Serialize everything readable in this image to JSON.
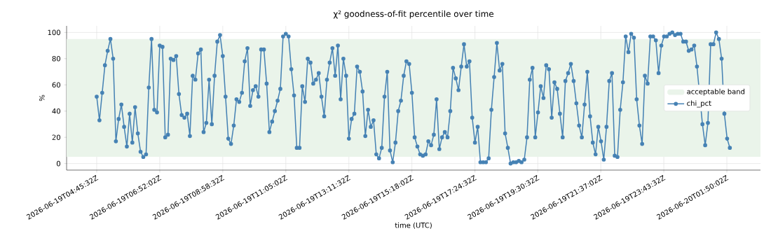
{
  "chart_data": {
    "type": "line",
    "title": "χ² goodness-of-fit percentile over time",
    "xlabel": "time (UTC)",
    "ylabel": "%",
    "x": [
      "2026-06-19T04:45:32Z",
      "2026-06-19T04:51:02Z",
      "2026-06-19T04:56:32Z",
      "2026-06-19T05:02:02Z",
      "2026-06-19T05:07:32Z",
      "2026-06-19T05:13:02Z",
      "2026-06-19T05:18:32Z",
      "2026-06-19T05:24:02Z",
      "2026-06-19T05:29:32Z",
      "2026-06-19T05:35:02Z",
      "2026-06-19T05:40:32Z",
      "2026-06-19T05:46:02Z",
      "2026-06-19T05:51:32Z",
      "2026-06-19T05:57:02Z",
      "2026-06-19T06:02:32Z",
      "2026-06-19T06:08:02Z",
      "2026-06-19T06:13:32Z",
      "2026-06-19T06:19:02Z",
      "2026-06-19T06:24:32Z",
      "2026-06-19T06:30:02Z",
      "2026-06-19T06:35:32Z",
      "2026-06-19T06:41:02Z",
      "2026-06-19T06:46:32Z",
      "2026-06-19T06:52:02Z",
      "2026-06-19T06:57:32Z",
      "2026-06-19T07:03:02Z",
      "2026-06-19T07:08:32Z",
      "2026-06-19T07:14:02Z",
      "2026-06-19T07:19:32Z",
      "2026-06-19T07:25:02Z",
      "2026-06-19T07:30:32Z",
      "2026-06-19T07:36:02Z",
      "2026-06-19T07:41:32Z",
      "2026-06-19T07:47:02Z",
      "2026-06-19T07:52:32Z",
      "2026-06-19T07:58:02Z",
      "2026-06-19T08:03:32Z",
      "2026-06-19T08:09:02Z",
      "2026-06-19T08:14:32Z",
      "2026-06-19T08:20:02Z",
      "2026-06-19T08:25:32Z",
      "2026-06-19T08:31:02Z",
      "2026-06-19T08:36:32Z",
      "2026-06-19T08:42:02Z",
      "2026-06-19T08:47:32Z",
      "2026-06-19T08:53:02Z",
      "2026-06-19T08:58:32Z",
      "2026-06-19T09:04:02Z",
      "2026-06-19T09:09:32Z",
      "2026-06-19T09:15:02Z",
      "2026-06-19T09:20:32Z",
      "2026-06-19T09:26:02Z",
      "2026-06-19T09:31:32Z",
      "2026-06-19T09:37:02Z",
      "2026-06-19T09:42:32Z",
      "2026-06-19T09:48:02Z",
      "2026-06-19T09:53:32Z",
      "2026-06-19T09:59:02Z",
      "2026-06-19T10:04:32Z",
      "2026-06-19T10:10:02Z",
      "2026-06-19T10:15:32Z",
      "2026-06-19T10:21:02Z",
      "2026-06-19T10:26:32Z",
      "2026-06-19T10:32:02Z",
      "2026-06-19T10:37:32Z",
      "2026-06-19T10:43:02Z",
      "2026-06-19T10:48:32Z",
      "2026-06-19T10:54:02Z",
      "2026-06-19T10:59:32Z",
      "2026-06-19T11:05:02Z",
      "2026-06-19T11:10:32Z",
      "2026-06-19T11:16:02Z",
      "2026-06-19T11:21:32Z",
      "2026-06-19T11:27:02Z",
      "2026-06-19T11:32:32Z",
      "2026-06-19T11:38:02Z",
      "2026-06-19T11:43:32Z",
      "2026-06-19T11:49:02Z",
      "2026-06-19T11:54:32Z",
      "2026-06-19T12:00:02Z",
      "2026-06-19T12:05:32Z",
      "2026-06-19T12:11:02Z",
      "2026-06-19T12:16:32Z",
      "2026-06-19T12:22:02Z",
      "2026-06-19T12:27:32Z",
      "2026-06-19T12:33:02Z",
      "2026-06-19T12:38:32Z",
      "2026-06-19T12:44:02Z",
      "2026-06-19T12:49:32Z",
      "2026-06-19T12:55:02Z",
      "2026-06-19T13:00:32Z",
      "2026-06-19T13:06:02Z",
      "2026-06-19T13:11:32Z",
      "2026-06-19T13:17:02Z",
      "2026-06-19T13:22:32Z",
      "2026-06-19T13:28:02Z",
      "2026-06-19T13:33:32Z",
      "2026-06-19T13:39:02Z",
      "2026-06-19T13:44:32Z",
      "2026-06-19T13:50:02Z",
      "2026-06-19T13:55:32Z",
      "2026-06-19T14:01:02Z",
      "2026-06-19T14:06:32Z",
      "2026-06-19T14:12:02Z",
      "2026-06-19T14:17:32Z",
      "2026-06-19T14:23:02Z",
      "2026-06-19T14:28:32Z",
      "2026-06-19T14:34:02Z",
      "2026-06-19T14:39:32Z",
      "2026-06-19T14:45:02Z",
      "2026-06-19T14:50:32Z",
      "2026-06-19T14:56:02Z",
      "2026-06-19T15:01:32Z",
      "2026-06-19T15:07:02Z",
      "2026-06-19T15:12:32Z",
      "2026-06-19T15:18:02Z",
      "2026-06-19T15:23:32Z",
      "2026-06-19T15:29:02Z",
      "2026-06-19T15:34:32Z",
      "2026-06-19T15:40:02Z",
      "2026-06-19T15:45:32Z",
      "2026-06-19T15:51:02Z",
      "2026-06-19T15:56:32Z",
      "2026-06-19T16:02:02Z",
      "2026-06-19T16:07:32Z",
      "2026-06-19T16:13:02Z",
      "2026-06-19T16:18:32Z",
      "2026-06-19T16:24:02Z",
      "2026-06-19T16:29:32Z",
      "2026-06-19T16:35:02Z",
      "2026-06-19T16:40:32Z",
      "2026-06-19T16:46:02Z",
      "2026-06-19T16:51:32Z",
      "2026-06-19T16:57:02Z",
      "2026-06-19T17:02:32Z",
      "2026-06-19T17:08:02Z",
      "2026-06-19T17:13:32Z",
      "2026-06-19T17:19:02Z",
      "2026-06-19T17:24:32Z",
      "2026-06-19T17:30:02Z",
      "2026-06-19T17:35:32Z",
      "2026-06-19T17:41:02Z",
      "2026-06-19T17:46:32Z",
      "2026-06-19T17:52:02Z",
      "2026-06-19T17:57:32Z",
      "2026-06-19T18:03:02Z",
      "2026-06-19T18:08:32Z",
      "2026-06-19T18:14:02Z",
      "2026-06-19T18:19:32Z",
      "2026-06-19T18:25:02Z",
      "2026-06-19T18:30:32Z",
      "2026-06-19T18:36:02Z",
      "2026-06-19T18:41:32Z",
      "2026-06-19T18:47:02Z",
      "2026-06-19T18:52:32Z",
      "2026-06-19T18:58:02Z",
      "2026-06-19T19:03:32Z",
      "2026-06-19T19:09:02Z",
      "2026-06-19T19:14:32Z",
      "2026-06-19T19:20:02Z",
      "2026-06-19T19:25:32Z",
      "2026-06-19T19:31:02Z",
      "2026-06-19T19:36:32Z",
      "2026-06-19T19:42:02Z",
      "2026-06-19T19:47:32Z",
      "2026-06-19T19:53:02Z",
      "2026-06-19T19:58:32Z",
      "2026-06-19T20:04:02Z",
      "2026-06-19T20:09:32Z",
      "2026-06-19T20:15:02Z",
      "2026-06-19T20:20:32Z",
      "2026-06-19T20:26:02Z",
      "2026-06-19T20:31:32Z",
      "2026-06-19T20:37:02Z",
      "2026-06-19T20:42:32Z",
      "2026-06-19T20:48:02Z",
      "2026-06-19T20:53:32Z",
      "2026-06-19T20:59:02Z",
      "2026-06-19T21:04:32Z",
      "2026-06-19T21:10:02Z",
      "2026-06-19T21:15:32Z",
      "2026-06-19T21:21:02Z",
      "2026-06-19T21:26:32Z",
      "2026-06-19T21:32:02Z",
      "2026-06-19T21:37:32Z",
      "2026-06-19T21:43:02Z",
      "2026-06-19T21:48:32Z",
      "2026-06-19T21:54:02Z",
      "2026-06-19T21:59:32Z",
      "2026-06-19T22:05:02Z",
      "2026-06-19T22:10:32Z",
      "2026-06-19T22:16:02Z",
      "2026-06-19T22:21:32Z",
      "2026-06-19T22:27:02Z",
      "2026-06-19T22:32:32Z",
      "2026-06-19T22:38:02Z",
      "2026-06-19T22:43:32Z",
      "2026-06-19T22:49:02Z",
      "2026-06-19T22:54:32Z",
      "2026-06-19T23:00:02Z",
      "2026-06-19T23:05:32Z",
      "2026-06-19T23:11:02Z",
      "2026-06-19T23:16:32Z",
      "2026-06-19T23:22:02Z",
      "2026-06-19T23:27:32Z",
      "2026-06-19T23:33:02Z",
      "2026-06-19T23:38:32Z",
      "2026-06-19T23:44:02Z",
      "2026-06-19T23:49:32Z",
      "2026-06-19T23:55:02Z",
      "2026-06-20T00:00:32Z",
      "2026-06-20T00:06:02Z",
      "2026-06-20T00:11:32Z",
      "2026-06-20T00:17:02Z",
      "2026-06-20T00:22:32Z",
      "2026-06-20T00:28:02Z",
      "2026-06-20T00:33:32Z",
      "2026-06-20T00:39:02Z",
      "2026-06-20T00:44:32Z",
      "2026-06-20T00:50:02Z",
      "2026-06-20T00:55:32Z",
      "2026-06-20T01:01:02Z",
      "2026-06-20T01:06:32Z",
      "2026-06-20T01:12:02Z",
      "2026-06-20T01:17:32Z",
      "2026-06-20T01:23:02Z",
      "2026-06-20T01:28:32Z",
      "2026-06-20T01:34:02Z",
      "2026-06-20T01:39:32Z",
      "2026-06-20T01:45:02Z",
      "2026-06-20T01:50:32Z",
      "2026-06-20T01:56:02Z"
    ],
    "series": [
      {
        "name": "chi_pct",
        "color": "#4682b4",
        "values": [
          51,
          33,
          54,
          75,
          86,
          95,
          80,
          17,
          34,
          45,
          28,
          13,
          38,
          16,
          43,
          23,
          9,
          5,
          7,
          58,
          95,
          41,
          39,
          90,
          89,
          20,
          22,
          80,
          79,
          82,
          53,
          37,
          35,
          38,
          21,
          67,
          64,
          84,
          87,
          24,
          31,
          64,
          30,
          67,
          93,
          98,
          82,
          51,
          19,
          15,
          29,
          49,
          47,
          54,
          78,
          88,
          44,
          56,
          59,
          51,
          87,
          87,
          61,
          24,
          32,
          40,
          48,
          57,
          97,
          99,
          97,
          72,
          52,
          12,
          12,
          59,
          47,
          80,
          77,
          61,
          64,
          69,
          51,
          36,
          64,
          77,
          88,
          67,
          90,
          49,
          80,
          67,
          19,
          34,
          38,
          74,
          70,
          55,
          21,
          41,
          28,
          33,
          7,
          4,
          12,
          51,
          70,
          10,
          1,
          16,
          40,
          48,
          67,
          78,
          76,
          54,
          20,
          13,
          7,
          6,
          7,
          17,
          14,
          22,
          49,
          11,
          20,
          24,
          20,
          40,
          73,
          65,
          56,
          74,
          91,
          74,
          78,
          35,
          16,
          28,
          1,
          1,
          1,
          4,
          41,
          66,
          92,
          71,
          76,
          23,
          12,
          0,
          1,
          1,
          2,
          1,
          3,
          20,
          64,
          73,
          20,
          39,
          59,
          50,
          75,
          72,
          35,
          62,
          57,
          38,
          20,
          63,
          69,
          76,
          63,
          46,
          29,
          20,
          45,
          70,
          36,
          16,
          7,
          28,
          17,
          3,
          28,
          63,
          69,
          6,
          5,
          41,
          62,
          97,
          85,
          99,
          96,
          49,
          29,
          15,
          67,
          61,
          97,
          97,
          94,
          69,
          90,
          97,
          97,
          99,
          100,
          98,
          99,
          99,
          93,
          93,
          86,
          87,
          90,
          74,
          null,
          30,
          14,
          31,
          91,
          91,
          100,
          95,
          80,
          38,
          19,
          12
        ]
      }
    ],
    "bands": [
      {
        "axis": "y",
        "from": 5,
        "to": 95,
        "label": "acceptable band",
        "color": "#eaf4ea"
      }
    ],
    "xlim": [
      "2026-06-19T03:45:06Z",
      "2026-06-20T02:57:30Z"
    ],
    "xticks": [
      "2026-06-19T04:45:32Z",
      "2026-06-19T06:52:02Z",
      "2026-06-19T08:58:32Z",
      "2026-06-19T11:05:02Z",
      "2026-06-19T13:11:32Z",
      "2026-06-19T15:18:02Z",
      "2026-06-19T17:24:32Z",
      "2026-06-19T19:30:32Z",
      "2026-06-19T21:37:02Z",
      "2026-06-19T23:43:32Z",
      "2026-06-20T01:50:02Z"
    ],
    "ylim": [
      -5,
      105
    ],
    "yticks": [
      0,
      20,
      40,
      60,
      80,
      100
    ],
    "grid": true,
    "legend": "right",
    "marker": "circle",
    "line_style": "solid"
  }
}
